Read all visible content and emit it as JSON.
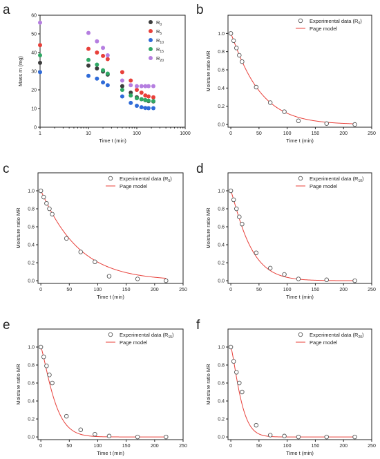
{
  "panel_letters": [
    "a",
    "b",
    "c",
    "d",
    "e",
    "f"
  ],
  "chart_data": [
    {
      "panel": "a",
      "type": "scatter",
      "xlabel": "Time t (min)",
      "ylabel": "Mass m (mg)",
      "xscale": "log",
      "xlim": [
        1,
        1000
      ],
      "ylim": [
        0,
        60
      ],
      "xticks": [
        1,
        10,
        100,
        1000
      ],
      "yticks": [
        0,
        10,
        20,
        30,
        40,
        50,
        60
      ],
      "legend_position": "top-right",
      "x": [
        1,
        10,
        15,
        20,
        25,
        50,
        75,
        100,
        125,
        150,
        175,
        220
      ],
      "series": [
        {
          "name": "R",
          "subscript": "0",
          "color": "#3c3c3c",
          "values": [
            34.5,
            33,
            31.5,
            29.8,
            28.2,
            22,
            18.5,
            16,
            15,
            14.5,
            14,
            13.8
          ]
        },
        {
          "name": "R",
          "subscript": "5",
          "color": "#e8403a",
          "values": [
            44,
            42,
            40,
            38.2,
            36.5,
            29.5,
            25,
            20,
            18.5,
            17,
            16.5,
            16
          ]
        },
        {
          "name": "R",
          "subscript": "10",
          "color": "#2f6bd8",
          "values": [
            29.5,
            27.5,
            26,
            24,
            22.5,
            16.5,
            13,
            11.5,
            10.7,
            10.3,
            10.2,
            10.2
          ]
        },
        {
          "name": "R",
          "subscript": "15",
          "color": "#2fa864",
          "values": [
            38.5,
            36,
            33.5,
            30.5,
            28.7,
            20,
            17,
            15.5,
            15,
            14.5,
            14.2,
            14
          ]
        },
        {
          "name": "R",
          "subscript": "20",
          "color": "#b57ee0",
          "values": [
            56,
            50.5,
            46,
            42.5,
            38.5,
            25,
            22.5,
            22,
            22,
            22,
            22,
            22
          ]
        }
      ]
    },
    {
      "panel": "b",
      "type": "scatter",
      "xlabel": "Time t (min)",
      "ylabel": "Moisture ratio MR",
      "xlim": [
        -5,
        250
      ],
      "ylim": [
        -0.03,
        1.2
      ],
      "xticks": [
        0,
        50,
        100,
        150,
        200,
        250
      ],
      "yticks": [
        0.0,
        0.2,
        0.4,
        0.6,
        0.8,
        1.0
      ],
      "ytick_labels": [
        "0.0",
        "0.2",
        "0.4",
        "0.6",
        "0.8",
        "1.0"
      ],
      "legend_position": "top-right",
      "experimental": {
        "name": "Experimental data (R",
        "subscript": "0",
        "suffix": ")",
        "x": [
          0,
          5,
          10,
          15,
          20,
          45,
          70,
          95,
          120,
          170,
          220
        ],
        "y": [
          1.0,
          0.92,
          0.84,
          0.76,
          0.69,
          0.41,
          0.24,
          0.14,
          0.04,
          0.01,
          0.0
        ]
      },
      "model": {
        "name": "Page model",
        "color": "#e8403a",
        "k": 0.0145,
        "n": 1.08,
        "x_max": 220
      }
    },
    {
      "panel": "c",
      "type": "scatter",
      "xlabel": "Time t (min)",
      "ylabel": "Moisture ratio MR",
      "xlim": [
        -5,
        250
      ],
      "ylim": [
        -0.03,
        1.2
      ],
      "xticks": [
        0,
        50,
        100,
        150,
        200,
        250
      ],
      "yticks": [
        0.0,
        0.2,
        0.4,
        0.6,
        0.8,
        1.0
      ],
      "ytick_labels": [
        "0.0",
        "0.2",
        "0.4",
        "0.6",
        "0.8",
        "1.0"
      ],
      "legend_position": "top-right",
      "experimental": {
        "name": "Experimental data (R",
        "subscript": "5",
        "suffix": ")",
        "x": [
          0,
          5,
          10,
          15,
          20,
          45,
          70,
          95,
          120,
          170,
          220
        ],
        "y": [
          1.0,
          0.93,
          0.86,
          0.8,
          0.74,
          0.47,
          0.32,
          0.21,
          0.05,
          0.02,
          0.0
        ]
      },
      "model": {
        "name": "Page model",
        "color": "#e8403a",
        "k": 0.0125,
        "n": 1.05,
        "x_max": 220
      }
    },
    {
      "panel": "d",
      "type": "scatter",
      "xlabel": "Time t (min)",
      "ylabel": "Moisture ratio MR",
      "xlim": [
        -5,
        250
      ],
      "ylim": [
        -0.03,
        1.2
      ],
      "xticks": [
        0,
        50,
        100,
        150,
        200,
        250
      ],
      "yticks": [
        0.0,
        0.2,
        0.4,
        0.6,
        0.8,
        1.0
      ],
      "ytick_labels": [
        "0.0",
        "0.2",
        "0.4",
        "0.6",
        "0.8",
        "1.0"
      ],
      "legend_position": "top-right",
      "experimental": {
        "name": "Experimental data (R",
        "subscript": "10",
        "suffix": ")",
        "x": [
          0,
          5,
          10,
          15,
          20,
          45,
          70,
          95,
          120,
          170,
          220
        ],
        "y": [
          1.0,
          0.9,
          0.8,
          0.71,
          0.63,
          0.31,
          0.14,
          0.07,
          0.02,
          0.01,
          0.0
        ]
      },
      "model": {
        "name": "Page model",
        "color": "#e8403a",
        "k": 0.0165,
        "n": 1.15,
        "x_max": 220
      }
    },
    {
      "panel": "e",
      "type": "scatter",
      "xlabel": "Time t (min)",
      "ylabel": "Moisture ratio MR",
      "xlim": [
        -5,
        250
      ],
      "ylim": [
        -0.03,
        1.2
      ],
      "xticks": [
        0,
        50,
        100,
        150,
        200,
        250
      ],
      "yticks": [
        0.0,
        0.2,
        0.4,
        0.6,
        0.8,
        1.0
      ],
      "ytick_labels": [
        "0.0",
        "0.2",
        "0.4",
        "0.6",
        "0.8",
        "1.0"
      ],
      "legend_position": "top-right",
      "experimental": {
        "name": "Experimental data (R",
        "subscript": "15",
        "suffix": ")",
        "x": [
          0,
          5,
          10,
          15,
          20,
          45,
          70,
          95,
          120,
          170,
          220
        ],
        "y": [
          1.0,
          0.89,
          0.79,
          0.69,
          0.6,
          0.23,
          0.08,
          0.03,
          0.01,
          0.0,
          0.0
        ]
      },
      "model": {
        "name": "Page model",
        "color": "#e8403a",
        "k": 0.016,
        "n": 1.27,
        "x_max": 220
      }
    },
    {
      "panel": "f",
      "type": "scatter",
      "xlabel": "Time t (min)",
      "ylabel": "Moisture ratio MR",
      "xlim": [
        -5,
        250
      ],
      "ylim": [
        -0.03,
        1.2
      ],
      "xticks": [
        0,
        50,
        100,
        150,
        200,
        250
      ],
      "yticks": [
        0.0,
        0.2,
        0.4,
        0.6,
        0.8,
        1.0
      ],
      "ytick_labels": [
        "0.0",
        "0.2",
        "0.4",
        "0.6",
        "0.8",
        "1.0"
      ],
      "legend_position": "top-right",
      "experimental": {
        "name": "Experimental data (R",
        "subscript": "20",
        "suffix": ")",
        "x": [
          0,
          5,
          10,
          15,
          20,
          45,
          70,
          95,
          120,
          170,
          220
        ],
        "y": [
          1.0,
          0.84,
          0.72,
          0.6,
          0.5,
          0.13,
          0.02,
          0.01,
          0.0,
          0.0,
          0.0
        ]
      },
      "model": {
        "name": "Page model",
        "color": "#e8403a",
        "k": 0.0195,
        "n": 1.32,
        "x_max": 220
      }
    }
  ]
}
